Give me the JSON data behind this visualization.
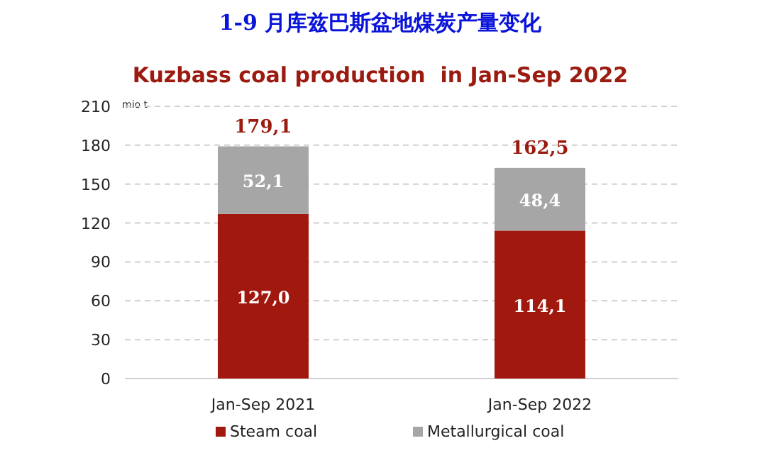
{
  "chart_data": {
    "type": "bar",
    "title": "1-9 月库兹巴斯盆地煤炭产量变化",
    "subtitle": "Kuzbass coal production  in Jan-Sep 2022",
    "ylabel": "mio t",
    "categories": [
      "Jan-Sep 2021",
      "Jan-Sep 2022"
    ],
    "stacked": true,
    "series": [
      {
        "name": "Steam coal",
        "color": "#a0180e",
        "values": [
          127.0,
          114.1
        ],
        "value_labels": [
          "127,0",
          "114,1"
        ]
      },
      {
        "name": "Metallurgical coal",
        "color": "#a6a6a6",
        "values": [
          52.1,
          48.4
        ],
        "value_labels": [
          "52,1",
          "48,4"
        ]
      }
    ],
    "totals": [
      "179,1",
      "162,5"
    ],
    "ylim": [
      0,
      210
    ],
    "yticks": [
      0,
      30,
      60,
      90,
      120,
      150,
      180,
      210
    ],
    "grid": "y",
    "legend": "bottom"
  }
}
